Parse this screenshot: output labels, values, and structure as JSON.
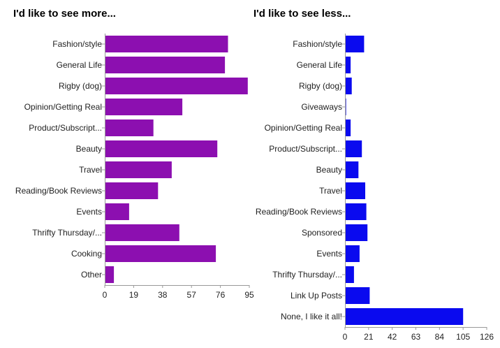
{
  "chart_data": [
    {
      "type": "bar",
      "orientation": "horizontal",
      "title": "I'd like to see more...",
      "categories": [
        "Fashion/style",
        "General Life",
        "Rigby (dog)",
        "Opinion/Getting Real",
        "Product/Subscript...",
        "Beauty",
        "Travel",
        "Reading/Book Reviews",
        "Events",
        "Thrifty Thursday/...",
        "Cooking",
        "Other"
      ],
      "values": [
        81,
        79,
        94,
        51,
        32,
        74,
        44,
        35,
        16,
        49,
        73,
        6
      ],
      "xlim": [
        0,
        95
      ],
      "xticks": [
        "0",
        "19",
        "38",
        "57",
        "76",
        "95"
      ],
      "color": "#8c0fb0",
      "grid": false
    },
    {
      "type": "bar",
      "orientation": "horizontal",
      "title": "I'd like to see less...",
      "categories": [
        "Fashion/style",
        "General Life",
        "Rigby (dog)",
        "Giveaways",
        "Opinion/Getting Real",
        "Product/Subscript...",
        "Beauty",
        "Travel",
        "Reading/Book Reviews",
        "Sponsored",
        "Events",
        "Thrifty Thursday/...",
        "Link Up Posts",
        "None, I like it all!"
      ],
      "values": [
        17,
        5,
        6,
        1,
        5,
        15,
        12,
        18,
        19,
        20,
        13,
        8,
        22,
        105
      ],
      "xlim": [
        0,
        126
      ],
      "xticks": [
        "0",
        "21",
        "42",
        "63",
        "84",
        "105",
        "126"
      ],
      "color": "#0a0aef",
      "grid": false
    }
  ]
}
